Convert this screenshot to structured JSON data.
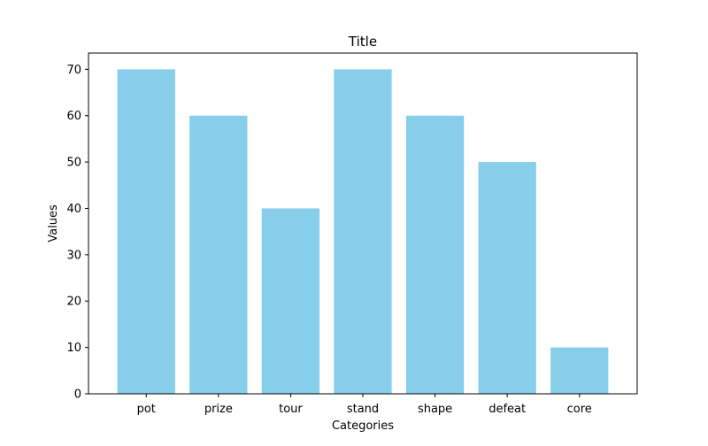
{
  "chart_data": {
    "type": "bar",
    "title": "Title",
    "xlabel": "Categories",
    "ylabel": "Values",
    "categories": [
      "pot",
      "prize",
      "tour",
      "stand",
      "shape",
      "defeat",
      "core"
    ],
    "values": [
      70,
      60,
      40,
      70,
      60,
      50,
      10
    ],
    "ylim": [
      0,
      73.5
    ],
    "yticks": [
      0,
      10,
      20,
      30,
      40,
      50,
      60,
      70
    ],
    "bar_color": "#87CEEB",
    "grid": false,
    "legend": "none"
  }
}
